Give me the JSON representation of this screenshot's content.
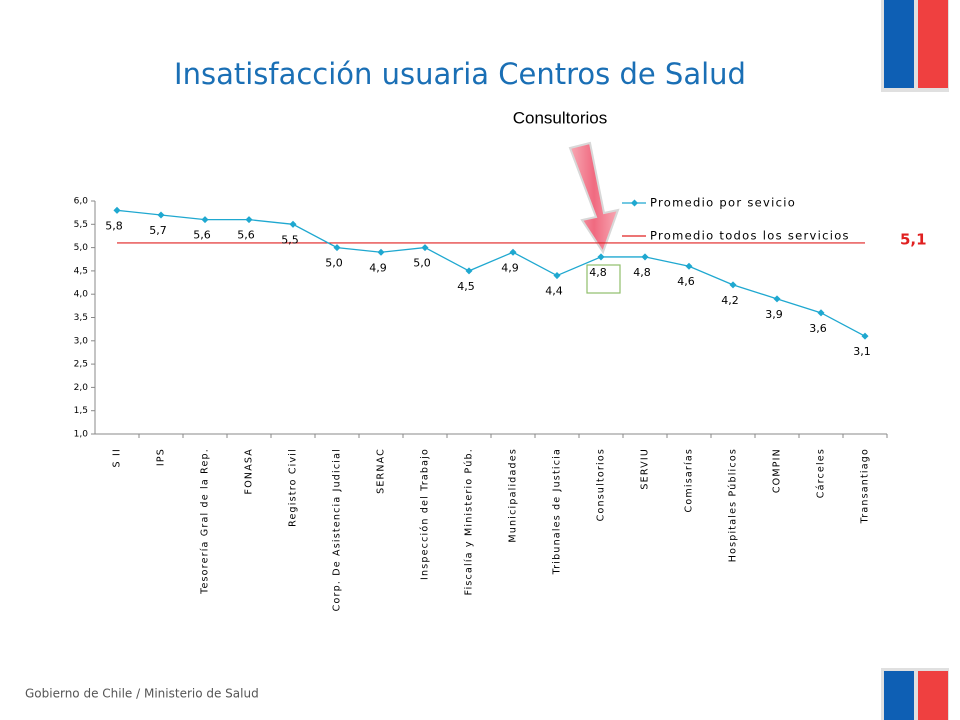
{
  "chart_data": {
    "type": "line",
    "title": "Insatisfacción usuaria Centros de Salud",
    "annotation": "Consultorios",
    "footer": "Gobierno de Chile / Ministerio de Salud",
    "categories": [
      "S II",
      "IPS",
      "Tesorería Gral de la Rep.",
      "FONASA",
      "Registro Civil",
      "Corp. De Asistencia Judicial",
      "SERNAC",
      "Inspección del Trabajo",
      "Fiscalía y Ministerio Púb.",
      "Municipalidades",
      "Tribunales de Justicia",
      "Consultorios",
      "SERVIU",
      "Comisarías",
      "Hospitales Públicos",
      "COMPIN",
      "Cárceles",
      "Transantiago"
    ],
    "series": [
      {
        "name": "Promedio por sevicio",
        "color": "#1fa8d0",
        "values": [
          5.8,
          5.7,
          5.6,
          5.6,
          5.5,
          5.0,
          4.9,
          5.0,
          4.5,
          4.9,
          4.4,
          4.8,
          4.8,
          4.6,
          4.2,
          3.9,
          3.6,
          3.1
        ],
        "value_labels": [
          "5,8",
          "5,7",
          "5,6",
          "5,6",
          "5,5",
          "5,0",
          "4,9",
          "5,0",
          "4,5",
          "4,9",
          "4,4",
          "4,8",
          "4,8",
          "4,6",
          "4,2",
          "3,9",
          "3,6",
          "3,1"
        ]
      }
    ],
    "reference_line": {
      "name": "Promedio todos los servicios",
      "color": "#e02020",
      "value": 5.1,
      "value_label": "5,1"
    },
    "ylim": [
      1,
      6
    ],
    "yticks": [
      {
        "value": 1,
        "label": "1,0"
      },
      {
        "value": 1.5,
        "label": "1,5"
      },
      {
        "value": 2,
        "label": "2,0"
      },
      {
        "value": 2.5,
        "label": "2,5"
      },
      {
        "value": 3,
        "label": "3,0"
      },
      {
        "value": 3.5,
        "label": "3,5"
      },
      {
        "value": 4,
        "label": "4,0"
      },
      {
        "value": 4.5,
        "label": "4,5"
      },
      {
        "value": 5,
        "label": "5,0"
      },
      {
        "value": 5.5,
        "label": "5,5"
      },
      {
        "value": 6,
        "label": "6,0"
      }
    ],
    "legend": "top-right"
  }
}
